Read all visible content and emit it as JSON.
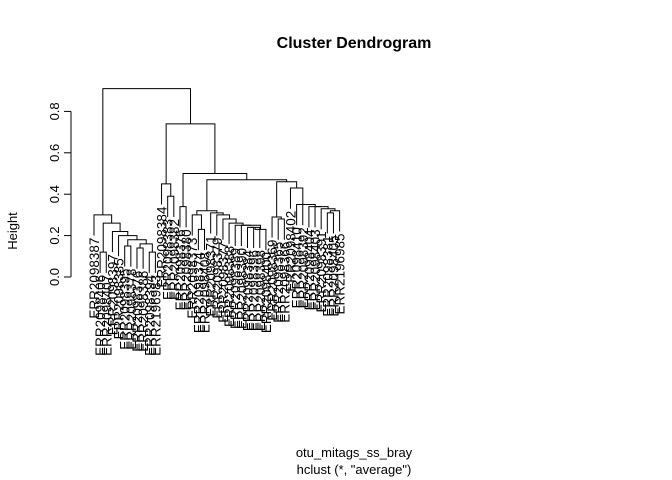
{
  "chart_data": {
    "type": "dendrogram",
    "title": "Cluster Dendrogram",
    "xlabel_line1": "otu_mitags_ss_bray",
    "xlabel_line2": "hclust (*, \"average\")",
    "ylabel": "Height",
    "ylim": [
      0,
      0.93
    ],
    "yticks": [
      0.0,
      0.2,
      0.4,
      0.6,
      0.8
    ],
    "ytick_labels": [
      "0.0",
      "0.2",
      "0.4",
      "0.6",
      "0.8"
    ],
    "leaves": [
      "ERR2098387",
      "ERR2098406",
      "ERR2098407",
      "ERR2098397",
      "ERR2098385",
      "ERR2098395",
      "ERR2098378",
      "ERR2098376",
      "ERR2098386",
      "ERR2098394",
      "ERR2196983",
      "ERR2098384",
      "ERR2098383",
      "ERR2098382",
      "ERR2098376",
      "ERR2098380",
      "ERR2098373",
      "ERR2098374",
      "ERR2098408",
      "ERR2098371",
      "ERR2098379",
      "ERR2098377",
      "ERR2098388",
      "ERR2098389",
      "ERR2098390",
      "ERR2098384",
      "ERR2098396",
      "ERR2098398",
      "ERR2098400",
      "ERR2098369",
      "ERR2098365",
      "ERR2098366",
      "ERR2098402",
      "ERR2098410",
      "ERR2098392",
      "ERR2098404",
      "ERR2098403",
      "ERR2098391",
      "ERR2098381",
      "ERR2098405",
      "ERR2196985"
    ],
    "merges": [
      [
        -10,
        -11,
        0.12
      ],
      [
        -8,
        -9,
        0.14
      ],
      [
        -2,
        -3,
        0.12
      ],
      [
        -6,
        -7,
        0.15
      ],
      [
        2,
        1,
        0.16
      ],
      [
        4,
        5,
        0.18
      ],
      [
        -5,
        6,
        0.2
      ],
      [
        -4,
        7,
        0.22
      ],
      [
        3,
        8,
        0.26
      ],
      [
        -1,
        9,
        0.3
      ],
      [
        -13,
        -14,
        0.39
      ],
      [
        -12,
        11,
        0.45
      ],
      [
        -15,
        -16,
        0.34
      ],
      [
        -18,
        -19,
        0.23
      ],
      [
        -17,
        14,
        0.3
      ],
      [
        -26,
        -27,
        0.24
      ],
      [
        16,
        -28,
        0.24
      ],
      [
        17,
        -29,
        0.23
      ],
      [
        -25,
        18,
        0.25
      ],
      [
        -24,
        19,
        0.25
      ],
      [
        -23,
        20,
        0.26
      ],
      [
        -22,
        21,
        0.28
      ],
      [
        -21,
        22,
        0.3
      ],
      [
        -20,
        23,
        0.31
      ],
      [
        15,
        24,
        0.32
      ],
      [
        -31,
        -32,
        0.28
      ],
      [
        -30,
        26,
        0.29
      ],
      [
        -39,
        -40,
        0.31
      ],
      [
        28,
        -41,
        0.32
      ],
      [
        -38,
        29,
        0.33
      ],
      [
        -37,
        30,
        0.34
      ],
      [
        -36,
        31,
        0.34
      ],
      [
        -35,
        32,
        0.35
      ],
      [
        -34,
        33,
        0.35
      ],
      [
        -33,
        34,
        0.43
      ],
      [
        27,
        35,
        0.46
      ],
      [
        25,
        36,
        0.47
      ],
      [
        13,
        37,
        0.5
      ],
      [
        12,
        38,
        0.74
      ],
      [
        10,
        39,
        0.91
      ]
    ]
  }
}
